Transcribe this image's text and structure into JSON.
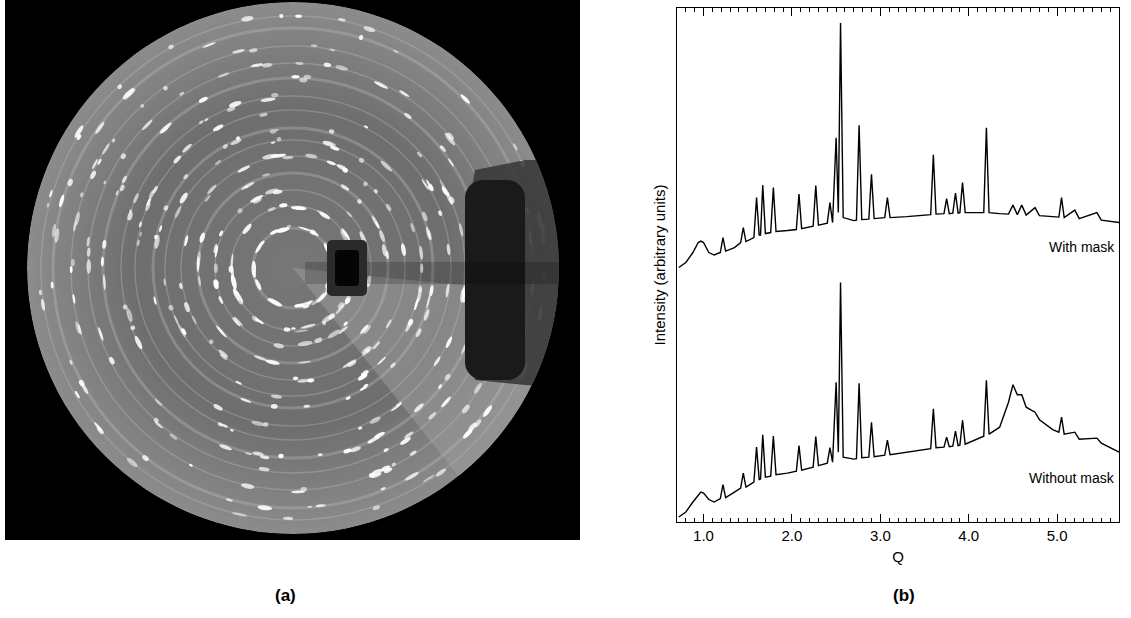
{
  "panel_labels": [
    "(a)",
    "(b)"
  ],
  "chart_data": {
    "type": "line",
    "x_label": "Q",
    "y_label": "Intensity (arbitrary units)",
    "xlim": [
      0.7,
      5.7
    ],
    "xticks": [
      {
        "value": 1,
        "label": "1.0"
      },
      {
        "value": 2,
        "label": "2.0"
      },
      {
        "value": 3,
        "label": "3.0"
      },
      {
        "value": 4,
        "label": "4.0"
      },
      {
        "value": 5,
        "label": "5.0"
      }
    ],
    "ylim": [
      0,
      103
    ],
    "tick_labels": "x",
    "grid": false,
    "x": [
      0.72,
      0.8,
      0.88,
      0.94,
      0.97,
      1.0,
      1.06,
      1.12,
      1.19,
      1.22,
      1.25,
      1.35,
      1.42,
      1.45,
      1.48,
      1.57,
      1.6,
      1.63,
      1.645,
      1.67,
      1.7,
      1.76,
      1.79,
      1.82,
      1.95,
      2.05,
      2.08,
      2.11,
      2.24,
      2.27,
      2.3,
      2.4,
      2.43,
      2.46,
      2.5,
      2.525,
      2.55,
      2.58,
      2.7,
      2.73,
      2.76,
      2.79,
      2.87,
      2.9,
      2.93,
      3.05,
      3.08,
      3.11,
      3.3,
      3.5,
      3.57,
      3.6,
      3.63,
      3.72,
      3.75,
      3.78,
      3.82,
      3.85,
      3.88,
      3.9,
      3.93,
      3.96,
      4.1,
      4.17,
      4.2,
      4.23,
      4.35,
      4.45,
      4.5,
      4.55,
      4.6,
      4.65,
      4.75,
      4.8,
      4.95,
      5.02,
      5.05,
      5.08,
      5.2,
      5.25,
      5.45,
      5.5,
      5.7
    ],
    "series": [
      {
        "name": "With mask",
        "color": "#000000",
        "values": [
          51,
          52,
          54,
          56,
          56.3,
          56,
          54,
          53.5,
          54,
          57,
          54.3,
          55,
          56,
          59,
          56.2,
          57,
          65,
          57.5,
          57.5,
          67.5,
          57.8,
          58,
          67,
          58.2,
          58.4,
          58.6,
          65.7,
          58.8,
          59.3,
          67.4,
          59.5,
          59.9,
          64,
          60,
          77,
          62,
          100,
          61,
          60.4,
          60.5,
          79.5,
          60.6,
          60.7,
          69.7,
          60.8,
          61,
          65,
          61,
          61.2,
          61.5,
          61.6,
          73.6,
          61.7,
          61.8,
          64.8,
          61.8,
          61.9,
          65.9,
          61.9,
          62,
          68,
          62,
          62,
          62,
          79,
          62,
          61.8,
          61.7,
          63.5,
          61.6,
          63.5,
          61.5,
          63,
          61.4,
          61.2,
          61.1,
          65,
          61,
          62.5,
          60.8,
          62,
          60.5,
          60
        ]
      },
      {
        "name": "Without mask",
        "color": "#000000",
        "values": [
          1,
          2,
          4,
          5.5,
          6,
          5.8,
          4.5,
          4,
          4.7,
          7.5,
          4.9,
          6,
          6.8,
          9.8,
          7,
          8,
          15,
          8.5,
          8.6,
          17.5,
          9,
          9.2,
          17.2,
          9.5,
          9.8,
          10.2,
          15.3,
          10.4,
          11,
          17.1,
          11.3,
          11.8,
          14.9,
          12,
          28,
          14,
          48,
          13,
          12.6,
          12.7,
          27.8,
          12.9,
          13,
          20,
          13.1,
          13.4,
          16.4,
          13.5,
          14,
          14.5,
          14.7,
          22.7,
          14.9,
          15,
          17,
          15.1,
          15.2,
          18.2,
          15.3,
          15.4,
          20.4,
          15.6,
          16.6,
          17.2,
          28.4,
          17.6,
          19,
          24,
          27.5,
          25.5,
          25.5,
          23,
          22,
          20.5,
          18.5,
          18,
          21,
          17.6,
          18,
          16.6,
          16.8,
          15.8,
          14
        ]
      }
    ]
  }
}
